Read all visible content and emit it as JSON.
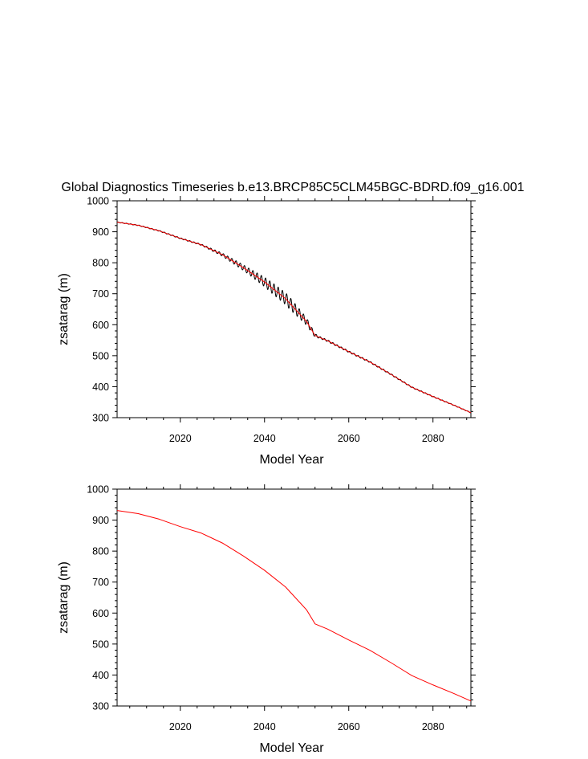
{
  "title": "Global Diagnostics Timeseries b.e13.BRCP85C5CLM45BGC-BDRD.f09_g16.001",
  "colors": {
    "monthly": "#000000",
    "annual": "#ff0000",
    "axis": "#000000"
  },
  "chart_data": [
    {
      "type": "line",
      "xlabel": "Model Year",
      "ylabel": "zsatarag (m)",
      "xlim": [
        2005,
        2089
      ],
      "ylim": [
        300,
        1000
      ],
      "xticks": [
        2020,
        2040,
        2060,
        2080
      ],
      "xtick_labels": [
        "2020",
        "2040",
        "2060",
        "2080"
      ],
      "yticks": [
        300,
        400,
        500,
        600,
        700,
        800,
        900,
        1000
      ],
      "ytick_labels": [
        "300",
        "400",
        "500",
        "600",
        "700",
        "800",
        "900",
        "1000"
      ],
      "grid": false,
      "series": [
        {
          "name": "monthly",
          "color": "#000000",
          "seasonal_amplitude_by_year": {
            "x": [
              2005,
              2025,
              2030,
              2036,
              2042,
              2046,
              2050,
              2053,
              2089
            ],
            "amp": [
              1,
              2,
              5,
              10,
              18,
              20,
              12,
              3,
              1
            ]
          },
          "x": [
            2005,
            2010,
            2015,
            2020,
            2025,
            2030,
            2035,
            2040,
            2045,
            2050,
            2052,
            2055,
            2060,
            2065,
            2070,
            2075,
            2080,
            2085,
            2089
          ],
          "y": [
            931,
            921,
            903,
            879,
            858,
            826,
            784,
            738,
            684,
            610,
            565,
            548,
            513,
            480,
            440,
            398,
            368,
            340,
            316
          ]
        },
        {
          "name": "annual",
          "color": "#ff0000",
          "x": [
            2005,
            2010,
            2015,
            2020,
            2025,
            2030,
            2035,
            2040,
            2045,
            2050,
            2052,
            2055,
            2060,
            2065,
            2070,
            2075,
            2080,
            2085,
            2089
          ],
          "y": [
            931,
            921,
            903,
            879,
            858,
            826,
            784,
            738,
            684,
            610,
            565,
            548,
            513,
            480,
            440,
            398,
            368,
            340,
            316
          ]
        }
      ]
    },
    {
      "type": "line",
      "xlabel": "Model Year",
      "ylabel": "zsatarag (m)",
      "xlim": [
        2005,
        2089
      ],
      "ylim": [
        300,
        1000
      ],
      "xticks": [
        2020,
        2040,
        2060,
        2080
      ],
      "xtick_labels": [
        "2020",
        "2040",
        "2060",
        "2080"
      ],
      "yticks": [
        300,
        400,
        500,
        600,
        700,
        800,
        900,
        1000
      ],
      "ytick_labels": [
        "300",
        "400",
        "500",
        "600",
        "700",
        "800",
        "900",
        "1000"
      ],
      "grid": false,
      "series": [
        {
          "name": "annual",
          "color": "#ff0000",
          "x": [
            2005,
            2010,
            2015,
            2020,
            2025,
            2030,
            2035,
            2040,
            2045,
            2050,
            2052,
            2055,
            2060,
            2065,
            2070,
            2075,
            2080,
            2085,
            2089
          ],
          "y": [
            931,
            921,
            903,
            879,
            858,
            826,
            784,
            738,
            684,
            610,
            565,
            548,
            513,
            480,
            440,
            398,
            368,
            340,
            316
          ]
        }
      ]
    }
  ]
}
